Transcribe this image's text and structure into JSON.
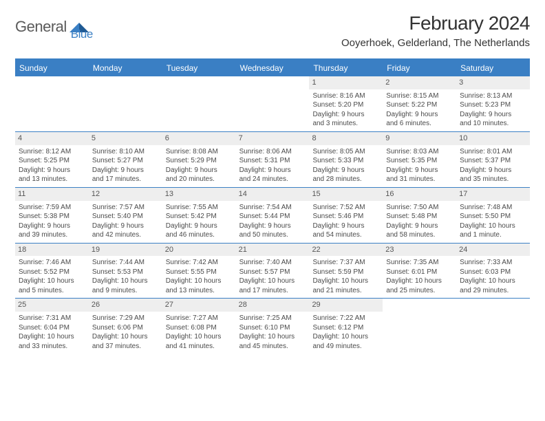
{
  "logo": {
    "textGray": "General",
    "textBlue": "Blue"
  },
  "title": "February 2024",
  "location": "Ooyerhoek, Gelderland, The Netherlands",
  "colors": {
    "headerBlue": "#3a7fc4",
    "dayNumBg": "#eeeeee",
    "textGray": "#5a5a5a",
    "cellText": "#4a4a4a"
  },
  "dayHeaders": [
    "Sunday",
    "Monday",
    "Tuesday",
    "Wednesday",
    "Thursday",
    "Friday",
    "Saturday"
  ],
  "weeks": [
    [
      {
        "empty": true
      },
      {
        "empty": true
      },
      {
        "empty": true
      },
      {
        "empty": true
      },
      {
        "num": "1",
        "sunrise": "Sunrise: 8:16 AM",
        "sunset": "Sunset: 5:20 PM",
        "daylight1": "Daylight: 9 hours",
        "daylight2": "and 3 minutes."
      },
      {
        "num": "2",
        "sunrise": "Sunrise: 8:15 AM",
        "sunset": "Sunset: 5:22 PM",
        "daylight1": "Daylight: 9 hours",
        "daylight2": "and 6 minutes."
      },
      {
        "num": "3",
        "sunrise": "Sunrise: 8:13 AM",
        "sunset": "Sunset: 5:23 PM",
        "daylight1": "Daylight: 9 hours",
        "daylight2": "and 10 minutes."
      }
    ],
    [
      {
        "num": "4",
        "sunrise": "Sunrise: 8:12 AM",
        "sunset": "Sunset: 5:25 PM",
        "daylight1": "Daylight: 9 hours",
        "daylight2": "and 13 minutes."
      },
      {
        "num": "5",
        "sunrise": "Sunrise: 8:10 AM",
        "sunset": "Sunset: 5:27 PM",
        "daylight1": "Daylight: 9 hours",
        "daylight2": "and 17 minutes."
      },
      {
        "num": "6",
        "sunrise": "Sunrise: 8:08 AM",
        "sunset": "Sunset: 5:29 PM",
        "daylight1": "Daylight: 9 hours",
        "daylight2": "and 20 minutes."
      },
      {
        "num": "7",
        "sunrise": "Sunrise: 8:06 AM",
        "sunset": "Sunset: 5:31 PM",
        "daylight1": "Daylight: 9 hours",
        "daylight2": "and 24 minutes."
      },
      {
        "num": "8",
        "sunrise": "Sunrise: 8:05 AM",
        "sunset": "Sunset: 5:33 PM",
        "daylight1": "Daylight: 9 hours",
        "daylight2": "and 28 minutes."
      },
      {
        "num": "9",
        "sunrise": "Sunrise: 8:03 AM",
        "sunset": "Sunset: 5:35 PM",
        "daylight1": "Daylight: 9 hours",
        "daylight2": "and 31 minutes."
      },
      {
        "num": "10",
        "sunrise": "Sunrise: 8:01 AM",
        "sunset": "Sunset: 5:37 PM",
        "daylight1": "Daylight: 9 hours",
        "daylight2": "and 35 minutes."
      }
    ],
    [
      {
        "num": "11",
        "sunrise": "Sunrise: 7:59 AM",
        "sunset": "Sunset: 5:38 PM",
        "daylight1": "Daylight: 9 hours",
        "daylight2": "and 39 minutes."
      },
      {
        "num": "12",
        "sunrise": "Sunrise: 7:57 AM",
        "sunset": "Sunset: 5:40 PM",
        "daylight1": "Daylight: 9 hours",
        "daylight2": "and 42 minutes."
      },
      {
        "num": "13",
        "sunrise": "Sunrise: 7:55 AM",
        "sunset": "Sunset: 5:42 PM",
        "daylight1": "Daylight: 9 hours",
        "daylight2": "and 46 minutes."
      },
      {
        "num": "14",
        "sunrise": "Sunrise: 7:54 AM",
        "sunset": "Sunset: 5:44 PM",
        "daylight1": "Daylight: 9 hours",
        "daylight2": "and 50 minutes."
      },
      {
        "num": "15",
        "sunrise": "Sunrise: 7:52 AM",
        "sunset": "Sunset: 5:46 PM",
        "daylight1": "Daylight: 9 hours",
        "daylight2": "and 54 minutes."
      },
      {
        "num": "16",
        "sunrise": "Sunrise: 7:50 AM",
        "sunset": "Sunset: 5:48 PM",
        "daylight1": "Daylight: 9 hours",
        "daylight2": "and 58 minutes."
      },
      {
        "num": "17",
        "sunrise": "Sunrise: 7:48 AM",
        "sunset": "Sunset: 5:50 PM",
        "daylight1": "Daylight: 10 hours",
        "daylight2": "and 1 minute."
      }
    ],
    [
      {
        "num": "18",
        "sunrise": "Sunrise: 7:46 AM",
        "sunset": "Sunset: 5:52 PM",
        "daylight1": "Daylight: 10 hours",
        "daylight2": "and 5 minutes."
      },
      {
        "num": "19",
        "sunrise": "Sunrise: 7:44 AM",
        "sunset": "Sunset: 5:53 PM",
        "daylight1": "Daylight: 10 hours",
        "daylight2": "and 9 minutes."
      },
      {
        "num": "20",
        "sunrise": "Sunrise: 7:42 AM",
        "sunset": "Sunset: 5:55 PM",
        "daylight1": "Daylight: 10 hours",
        "daylight2": "and 13 minutes."
      },
      {
        "num": "21",
        "sunrise": "Sunrise: 7:40 AM",
        "sunset": "Sunset: 5:57 PM",
        "daylight1": "Daylight: 10 hours",
        "daylight2": "and 17 minutes."
      },
      {
        "num": "22",
        "sunrise": "Sunrise: 7:37 AM",
        "sunset": "Sunset: 5:59 PM",
        "daylight1": "Daylight: 10 hours",
        "daylight2": "and 21 minutes."
      },
      {
        "num": "23",
        "sunrise": "Sunrise: 7:35 AM",
        "sunset": "Sunset: 6:01 PM",
        "daylight1": "Daylight: 10 hours",
        "daylight2": "and 25 minutes."
      },
      {
        "num": "24",
        "sunrise": "Sunrise: 7:33 AM",
        "sunset": "Sunset: 6:03 PM",
        "daylight1": "Daylight: 10 hours",
        "daylight2": "and 29 minutes."
      }
    ],
    [
      {
        "num": "25",
        "sunrise": "Sunrise: 7:31 AM",
        "sunset": "Sunset: 6:04 PM",
        "daylight1": "Daylight: 10 hours",
        "daylight2": "and 33 minutes."
      },
      {
        "num": "26",
        "sunrise": "Sunrise: 7:29 AM",
        "sunset": "Sunset: 6:06 PM",
        "daylight1": "Daylight: 10 hours",
        "daylight2": "and 37 minutes."
      },
      {
        "num": "27",
        "sunrise": "Sunrise: 7:27 AM",
        "sunset": "Sunset: 6:08 PM",
        "daylight1": "Daylight: 10 hours",
        "daylight2": "and 41 minutes."
      },
      {
        "num": "28",
        "sunrise": "Sunrise: 7:25 AM",
        "sunset": "Sunset: 6:10 PM",
        "daylight1": "Daylight: 10 hours",
        "daylight2": "and 45 minutes."
      },
      {
        "num": "29",
        "sunrise": "Sunrise: 7:22 AM",
        "sunset": "Sunset: 6:12 PM",
        "daylight1": "Daylight: 10 hours",
        "daylight2": "and 49 minutes."
      },
      {
        "empty": true
      },
      {
        "empty": true
      }
    ]
  ]
}
